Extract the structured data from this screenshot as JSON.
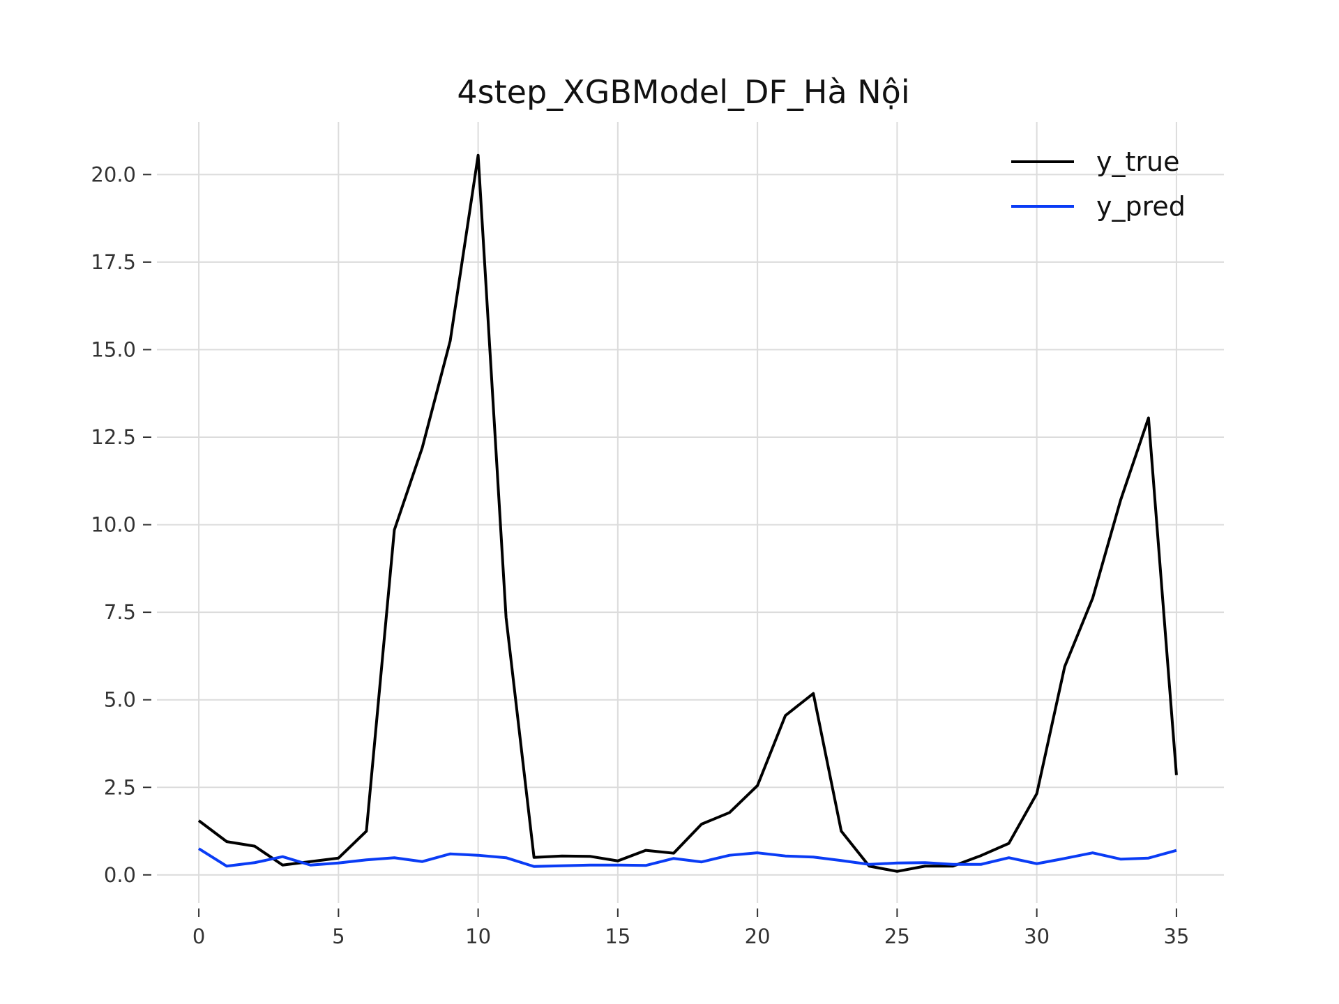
{
  "chart_data": {
    "type": "line",
    "title": "4step_XGBModel_DF_Hà Nội",
    "xlabel": "",
    "ylabel": "",
    "xlim": [
      -1.5,
      36.7
    ],
    "ylim": [
      -0.8,
      21.5
    ],
    "grid": true,
    "legend_position": "top-right",
    "x": [
      0,
      1,
      2,
      3,
      4,
      5,
      6,
      7,
      8,
      9,
      10,
      11,
      12,
      13,
      14,
      15,
      16,
      17,
      18,
      19,
      20,
      21,
      22,
      23,
      24,
      25,
      26,
      27,
      28,
      29,
      30,
      31,
      32,
      33,
      34,
      35
    ],
    "xticks": [
      0,
      5,
      10,
      15,
      20,
      25,
      30,
      35
    ],
    "xtick_labels": [
      "0",
      "5",
      "10",
      "15",
      "20",
      "25",
      "30",
      "35"
    ],
    "yticks": [
      0.0,
      2.5,
      5.0,
      7.5,
      10.0,
      12.5,
      15.0,
      17.5,
      20.0
    ],
    "ytick_labels": [
      "0.0",
      "2.5",
      "5.0",
      "7.5",
      "10.0",
      "12.5",
      "15.0",
      "17.5",
      "20.0"
    ],
    "series": [
      {
        "name": "y_true",
        "color": "#000000",
        "values": [
          1.55,
          0.95,
          0.82,
          0.28,
          0.38,
          0.48,
          1.25,
          9.85,
          12.2,
          15.25,
          20.55,
          7.35,
          0.5,
          0.54,
          0.53,
          0.4,
          0.7,
          0.62,
          1.45,
          1.78,
          2.55,
          4.55,
          5.18,
          1.25,
          0.25,
          0.1,
          0.25,
          0.25,
          0.55,
          0.9,
          2.32,
          5.95,
          7.9,
          10.7,
          13.05,
          2.85
        ]
      },
      {
        "name": "y_pred",
        "color": "#0a3cf5",
        "values": [
          0.75,
          0.25,
          0.35,
          0.52,
          0.28,
          0.34,
          0.43,
          0.49,
          0.38,
          0.6,
          0.56,
          0.49,
          0.24,
          0.26,
          0.28,
          0.28,
          0.27,
          0.47,
          0.37,
          0.56,
          0.63,
          0.54,
          0.51,
          0.41,
          0.3,
          0.34,
          0.35,
          0.3,
          0.3,
          0.49,
          0.32,
          0.47,
          0.63,
          0.45,
          0.48,
          0.7
        ]
      }
    ]
  }
}
